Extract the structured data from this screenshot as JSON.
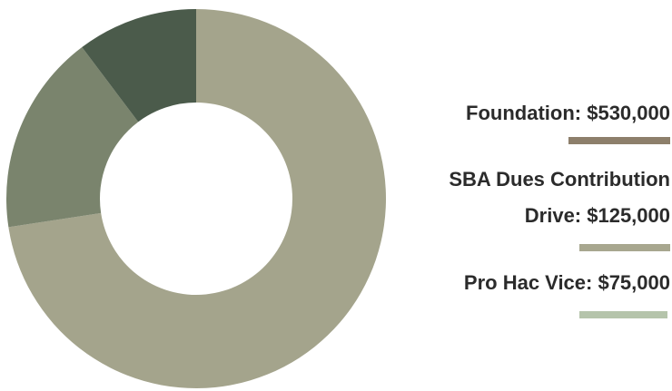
{
  "chart_data": {
    "type": "donut",
    "categories": [
      "Foundation: $530,000",
      "SBA Dues Contribution Drive: $125,000",
      "Pro Hac Vice: $75,000"
    ],
    "values": [
      530000,
      125000,
      75000
    ],
    "colors": [
      "#a4a48c",
      "#7a846d",
      "#4b5b4b"
    ],
    "legend_colors": [
      "#8d7f6b",
      "#a8a78f",
      "#b5c4ab"
    ]
  }
}
